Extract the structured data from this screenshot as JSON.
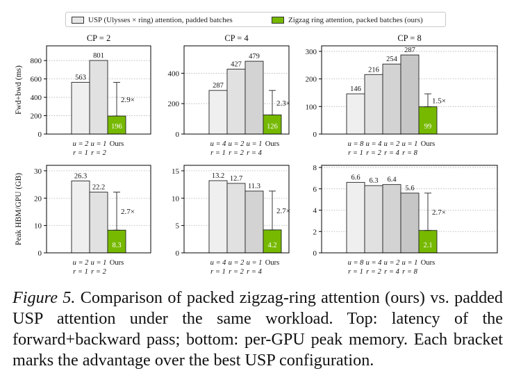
{
  "legend": {
    "items": [
      {
        "label": "USP (Ulysses × ring) attention, padded batches",
        "color": "#e6e6e6"
      },
      {
        "label": "Zigzag ring attention, packed batches (ours)",
        "color": "#76b900"
      }
    ]
  },
  "caption": {
    "figure_label": "Figure 5.",
    "text": "Comparison of packed zigzag-ring attention (ours) vs. padded USP attention under the same workload. Top: latency of the forward+backward pass; bottom: per-GPU peak memory. Each bracket marks the advantage over the best USP configuration."
  },
  "colors": {
    "usp_shades": [
      "#efefef",
      "#e1e1e1",
      "#d3d3d3",
      "#c6c6c6"
    ],
    "ours": "#76b900",
    "grid": "#b0b0b0"
  },
  "chart_data": [
    {
      "type": "bar",
      "row": "top",
      "title": "CP = 2",
      "ylabel": "Fwd+bwd (ms)",
      "ylim": [
        0,
        960
      ],
      "yticks": [
        0,
        200,
        400,
        600,
        800
      ],
      "categories": [
        [
          "u = 2",
          "r = 1"
        ],
        [
          "u = 1",
          "r = 2"
        ],
        [
          "Ours"
        ]
      ],
      "values": [
        563,
        801,
        196
      ],
      "value_labels": [
        "563",
        "801",
        "196"
      ],
      "speedup": "2.9×"
    },
    {
      "type": "bar",
      "row": "top",
      "title": "CP = 4",
      "ylabel": "",
      "ylim": [
        0,
        580
      ],
      "yticks": [
        0,
        200,
        400
      ],
      "categories": [
        [
          "u = 4",
          "r = 1"
        ],
        [
          "u = 2",
          "r = 2"
        ],
        [
          "u = 1",
          "r = 4"
        ],
        [
          "Ours"
        ]
      ],
      "values": [
        287,
        427,
        479,
        126
      ],
      "value_labels": [
        "287",
        "427",
        "479",
        "126"
      ],
      "speedup": "2.3×"
    },
    {
      "type": "bar",
      "row": "top",
      "title": "CP = 8",
      "ylabel": "",
      "ylim": [
        0,
        320
      ],
      "yticks": [
        0,
        100,
        200,
        300
      ],
      "categories": [
        [
          "u = 8",
          "r = 1"
        ],
        [
          "u = 4",
          "r = 2"
        ],
        [
          "u = 2",
          "r = 4"
        ],
        [
          "u = 1",
          "r = 8"
        ],
        [
          "Ours"
        ]
      ],
      "values": [
        146,
        216,
        254,
        287,
        99
      ],
      "value_labels": [
        "146",
        "216",
        "254",
        "287",
        "99"
      ],
      "speedup": "1.5×"
    },
    {
      "type": "bar",
      "row": "bottom",
      "title": "",
      "ylabel": "Peak HBM/GPU (GB)",
      "ylim": [
        0,
        32
      ],
      "yticks": [
        0,
        10,
        20,
        30
      ],
      "categories": [
        [
          "u = 2",
          "r = 1"
        ],
        [
          "u = 1",
          "r = 2"
        ],
        [
          "Ours"
        ]
      ],
      "values": [
        26.3,
        22.2,
        8.3
      ],
      "value_labels": [
        "26.3",
        "22.2",
        "8.3"
      ],
      "speedup": "2.7×"
    },
    {
      "type": "bar",
      "row": "bottom",
      "title": "",
      "ylabel": "",
      "ylim": [
        0,
        16
      ],
      "yticks": [
        0,
        5,
        10,
        15
      ],
      "categories": [
        [
          "u = 4",
          "r = 1"
        ],
        [
          "u = 2",
          "r = 2"
        ],
        [
          "u = 1",
          "r = 4"
        ],
        [
          "Ours"
        ]
      ],
      "values": [
        13.2,
        12.7,
        11.3,
        4.2
      ],
      "value_labels": [
        "13.2",
        "12.7",
        "11.3",
        "4.2"
      ],
      "speedup": "2.7×"
    },
    {
      "type": "bar",
      "row": "bottom",
      "title": "",
      "ylabel": "",
      "ylim": [
        0,
        8.2
      ],
      "yticks": [
        0,
        2,
        4,
        6,
        8
      ],
      "categories": [
        [
          "u = 8",
          "r = 1"
        ],
        [
          "u = 4",
          "r = 2"
        ],
        [
          "u = 2",
          "r = 4"
        ],
        [
          "u = 1",
          "r = 8"
        ],
        [
          "Ours"
        ]
      ],
      "values": [
        6.6,
        6.3,
        6.4,
        5.6,
        2.1
      ],
      "value_labels": [
        "6.6",
        "6.3",
        "6.4",
        "5.6",
        "2.1"
      ],
      "speedup": "2.7×"
    }
  ]
}
